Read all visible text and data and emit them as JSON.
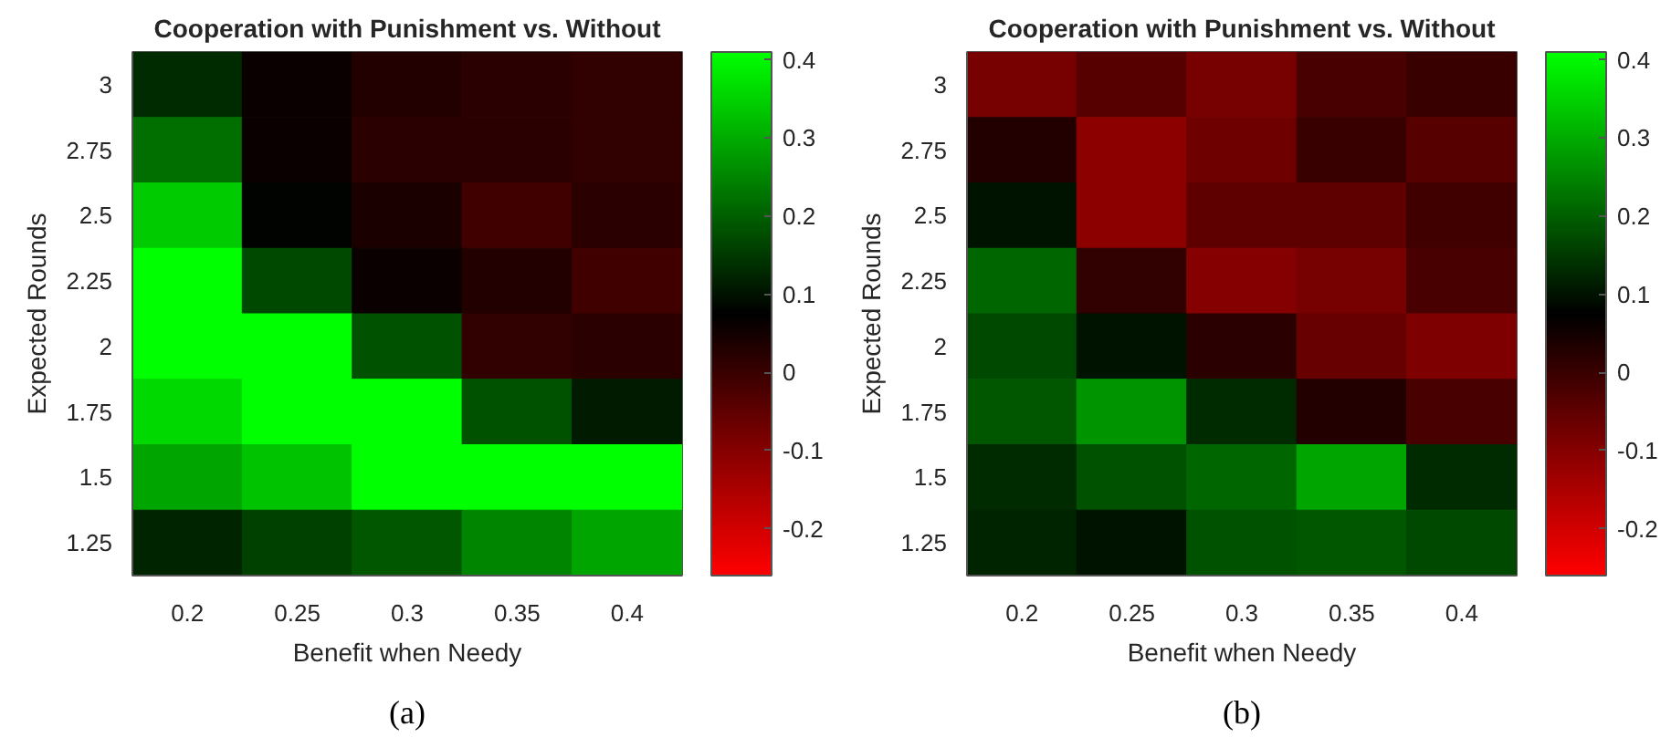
{
  "chart_data": [
    {
      "type": "heatmap",
      "title": "Cooperation with Punishment vs. Without",
      "xlabel": "Benefit when Needy",
      "ylabel": "Expected Rounds",
      "annotations": [
        "(a)"
      ],
      "categories": [
        "0.2",
        "0.25",
        "0.3",
        "0.35",
        "0.4"
      ],
      "y_categories": [
        "3",
        "2.75",
        "2.5",
        "2.25",
        "2",
        "1.75",
        "1.5",
        "1.25"
      ],
      "cells": [
        [
          0.13,
          0.06,
          0.03,
          0.02,
          0.01
        ],
        [
          0.22,
          0.06,
          0.02,
          0.02,
          0.01
        ],
        [
          0.34,
          0.08,
          0.04,
          -0.01,
          0.02
        ],
        [
          0.41,
          0.17,
          0.06,
          0.03,
          -0.01
        ],
        [
          0.41,
          0.41,
          0.18,
          0.01,
          0.02
        ],
        [
          0.36,
          0.41,
          0.41,
          0.18,
          0.11
        ],
        [
          0.29,
          0.33,
          0.41,
          0.41,
          0.41
        ],
        [
          0.12,
          0.16,
          0.19,
          0.25,
          0.29
        ]
      ],
      "clim": [
        -0.26,
        0.41
      ],
      "cticks": [
        -0.2,
        -0.1,
        0,
        0.1,
        0.2,
        0.3,
        0.4
      ]
    },
    {
      "type": "heatmap",
      "title": "Cooperation with Punishment vs. Without",
      "xlabel": "Benefit when Needy",
      "ylabel": "Expected Rounds",
      "annotations": [
        "(b)"
      ],
      "categories": [
        "0.2",
        "0.25",
        "0.3",
        "0.35",
        "0.4"
      ],
      "y_categories": [
        "3",
        "2.75",
        "2.5",
        "2.25",
        "2",
        "1.75",
        "1.5",
        "1.25"
      ],
      "cells": [
        [
          -0.08,
          -0.04,
          -0.08,
          -0.02,
          0.0
        ],
        [
          0.03,
          -0.11,
          -0.07,
          0.0,
          -0.04
        ],
        [
          0.1,
          -0.11,
          -0.05,
          -0.05,
          -0.01
        ],
        [
          0.21,
          0.01,
          -0.1,
          -0.08,
          -0.02
        ],
        [
          0.17,
          0.1,
          0.02,
          -0.06,
          -0.09
        ],
        [
          0.19,
          0.27,
          0.13,
          0.03,
          -0.02
        ],
        [
          0.13,
          0.18,
          0.21,
          0.29,
          0.13
        ],
        [
          0.12,
          0.1,
          0.18,
          0.19,
          0.17
        ]
      ],
      "clim": [
        -0.26,
        0.41
      ],
      "cticks": [
        -0.2,
        -0.1,
        0,
        0.1,
        0.2,
        0.3,
        0.4
      ]
    }
  ]
}
